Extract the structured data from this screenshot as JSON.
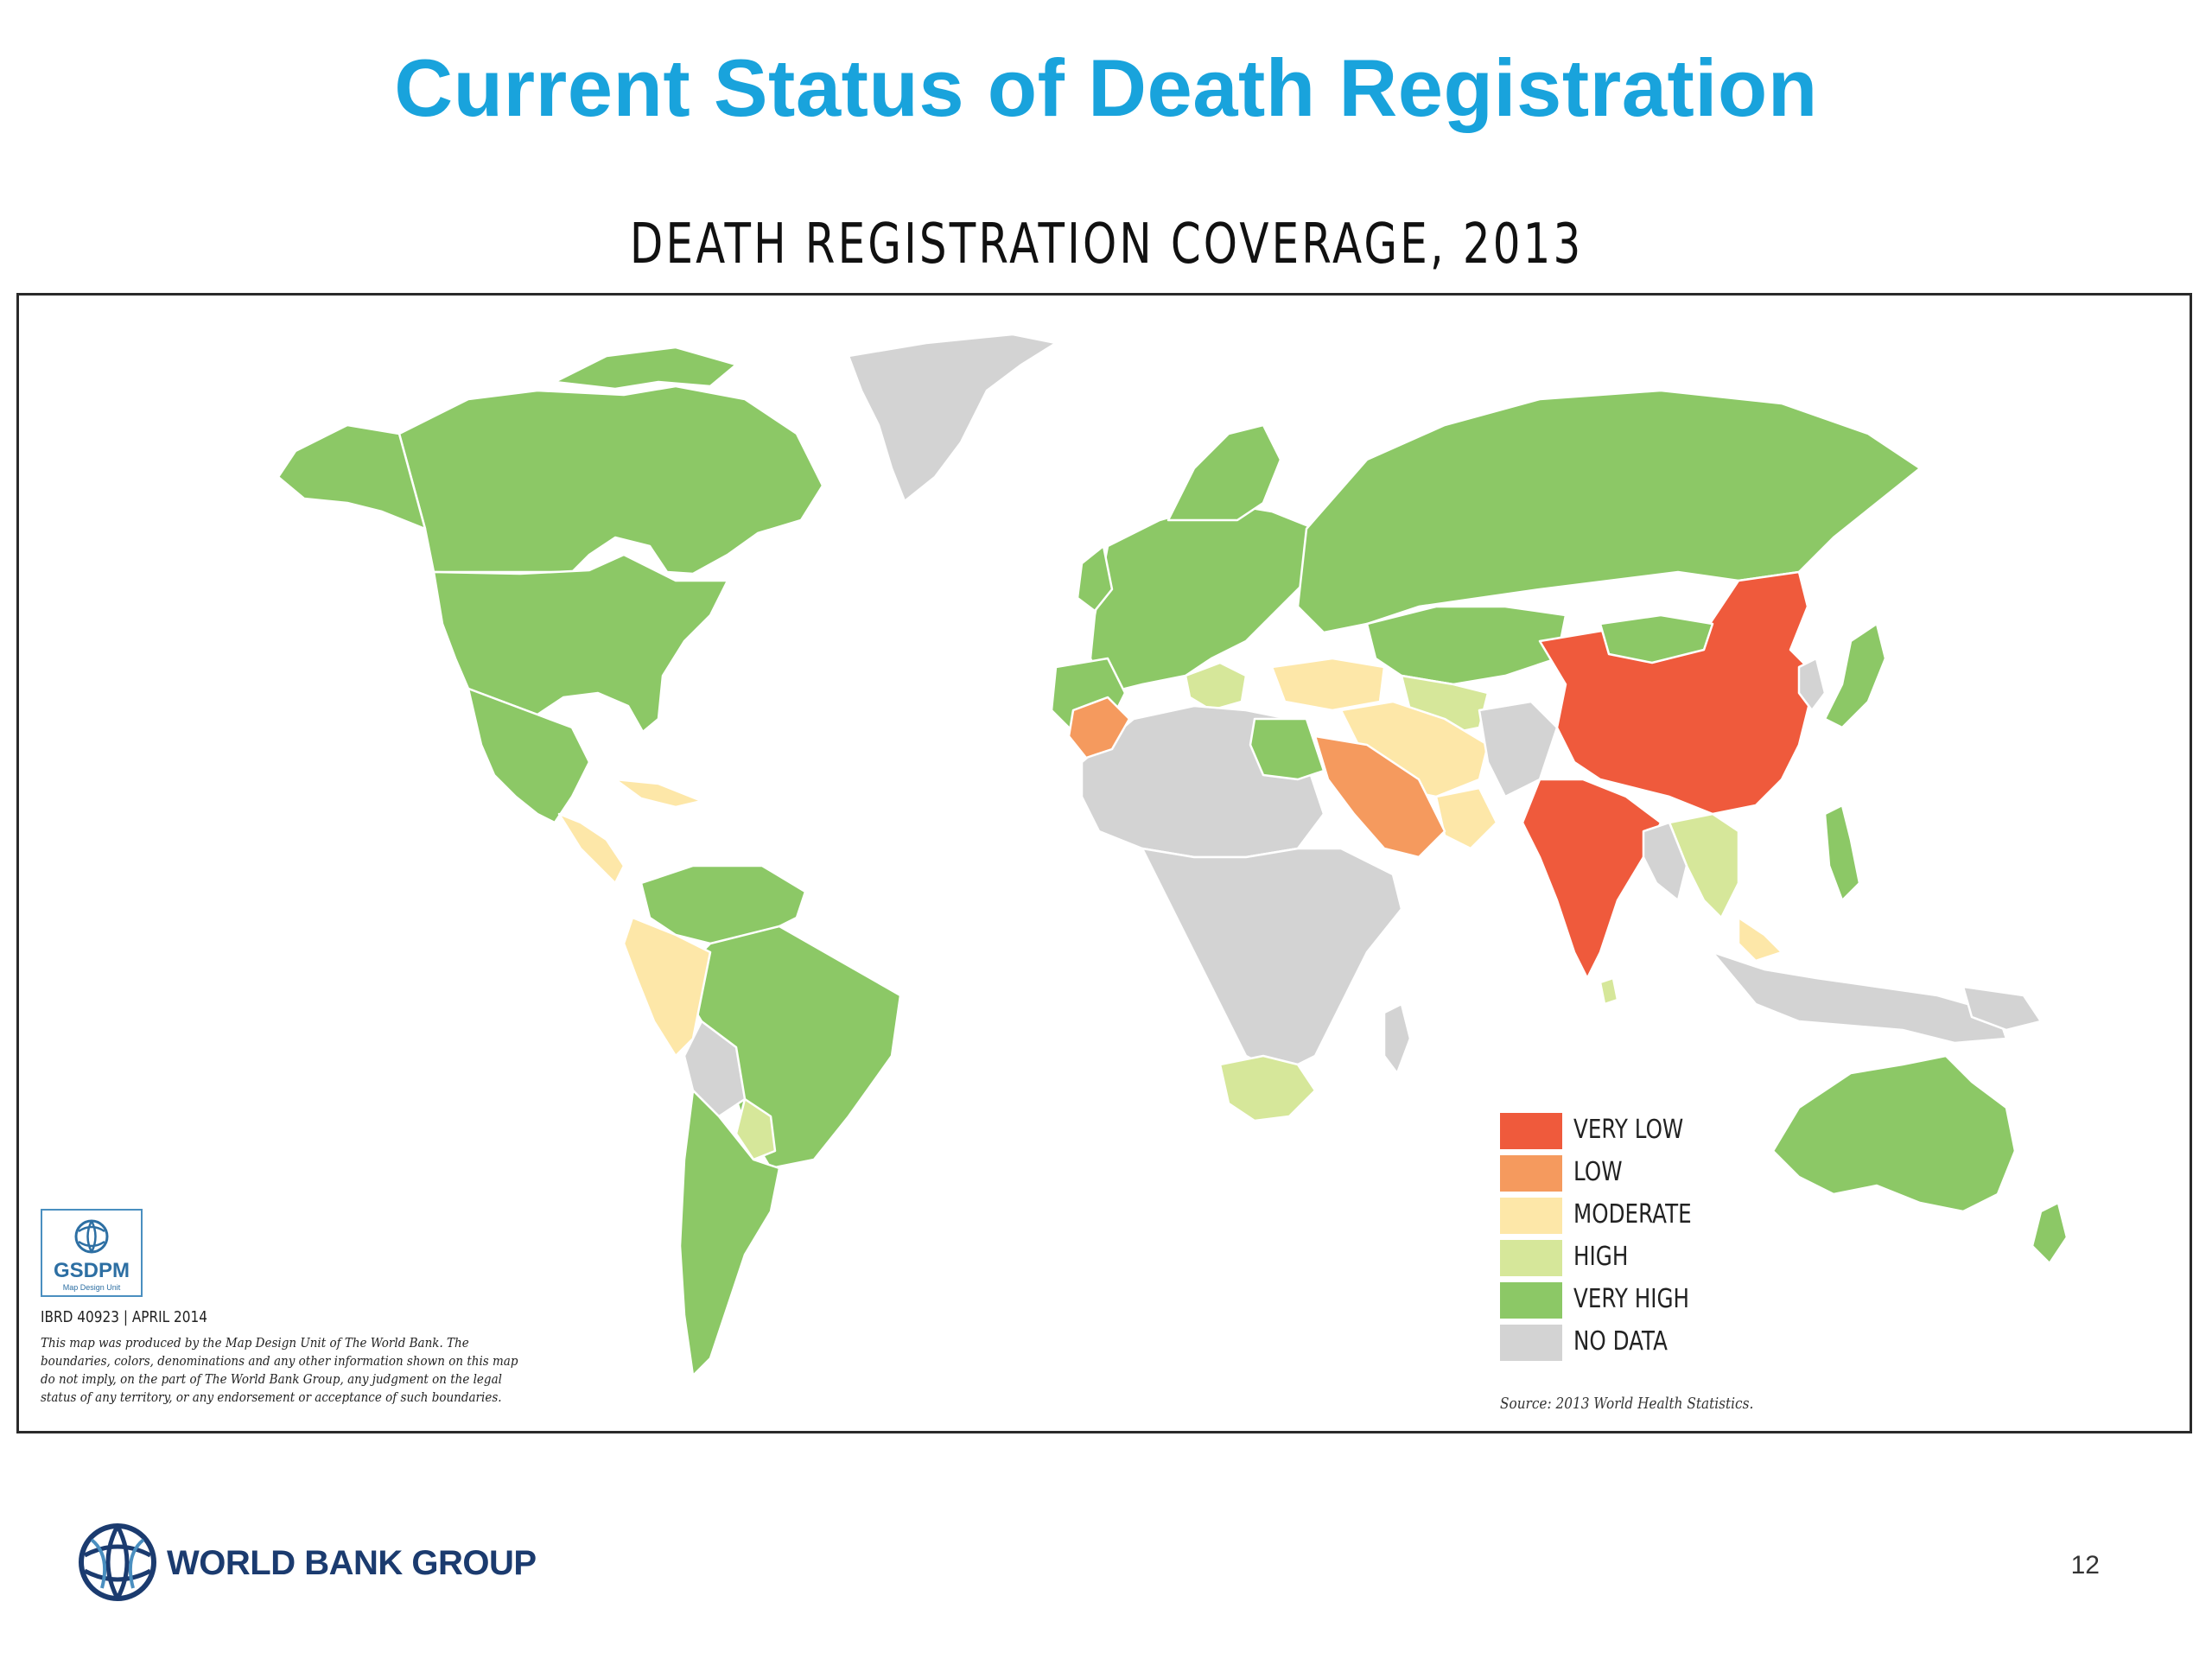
{
  "slide": {
    "title": "Current Status of Death Registration",
    "page_number": "12"
  },
  "map": {
    "title": "DEATH REGISTRATION COVERAGE, 2013",
    "source": "Source: 2013 World Health Statistics.",
    "ibrd": "IBRD 40923 | APRIL 2014",
    "disclaimer": "This map was produced by the Map Design Unit of The World Bank. The boundaries, colors, denominations and any other information shown on this map do not imply, on the part of The World Bank Group, any judgment on the legal status of any territory, or any endorsement or acceptance of such boundaries.",
    "legend": [
      {
        "label": "VERY LOW",
        "color": "#ef5a3c"
      },
      {
        "label": "LOW",
        "color": "#f59a5e"
      },
      {
        "label": "MODERATE",
        "color": "#fde7a8"
      },
      {
        "label": "HIGH",
        "color": "#d6e79a"
      },
      {
        "label": "VERY HIGH",
        "color": "#8cc866"
      },
      {
        "label": "NO DATA",
        "color": "#d3d3d3"
      }
    ]
  },
  "gsdpm": {
    "name": "GSDPM",
    "subtitle": "Map Design Unit"
  },
  "branding": {
    "name": "WORLD BANK GROUP"
  },
  "colors": {
    "title": "#19a3dc",
    "brand": "#1b3b6f"
  }
}
